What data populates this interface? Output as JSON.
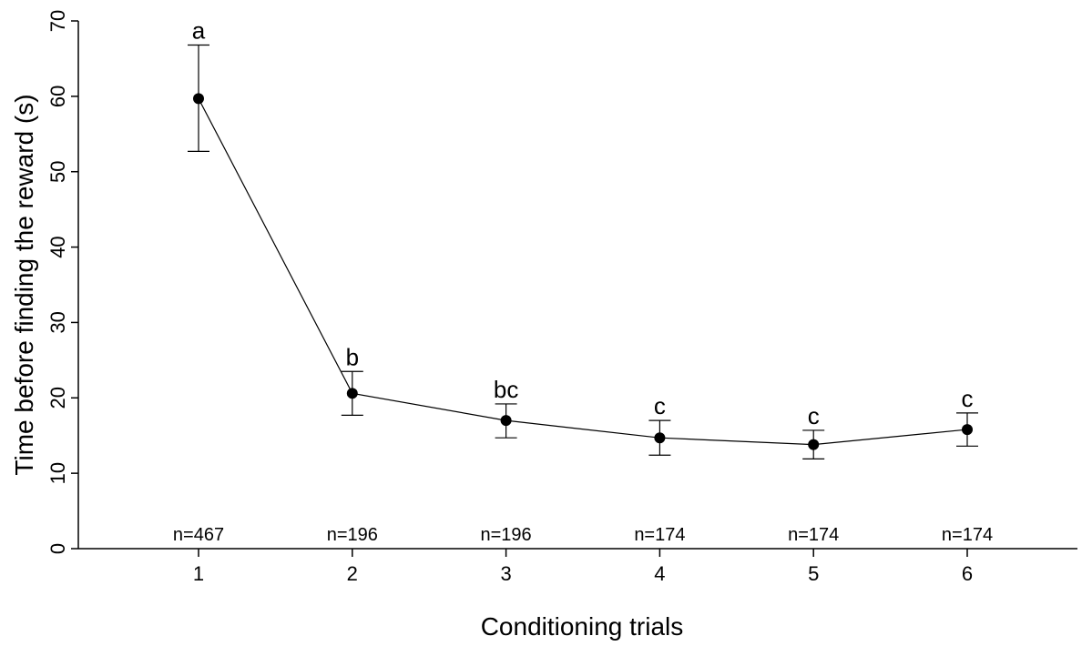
{
  "chart_data": {
    "type": "line",
    "xlabel": "Conditioning trials",
    "ylabel": "Time before finding the reward (s)",
    "ylim": [
      0,
      70
    ],
    "yticks": [
      0,
      10,
      20,
      30,
      40,
      50,
      60,
      70
    ],
    "x": [
      1,
      2,
      3,
      4,
      5,
      6
    ],
    "xticks": [
      "1",
      "2",
      "3",
      "4",
      "5",
      "6"
    ],
    "series": [
      {
        "values": [
          59.7,
          20.6,
          17.0,
          14.7,
          13.8,
          15.8
        ],
        "error_upper": [
          66.8,
          23.5,
          19.2,
          17.0,
          15.7,
          18.0
        ],
        "error_lower": [
          52.7,
          17.7,
          14.7,
          12.4,
          11.9,
          13.6
        ]
      }
    ],
    "significance_labels": [
      "a",
      "b",
      "bc",
      "c",
      "c",
      "c"
    ],
    "sample_sizes": [
      "n=467",
      "n=196",
      "n=196",
      "n=174",
      "n=174",
      "n=174"
    ],
    "grid": false,
    "legend": "none"
  }
}
